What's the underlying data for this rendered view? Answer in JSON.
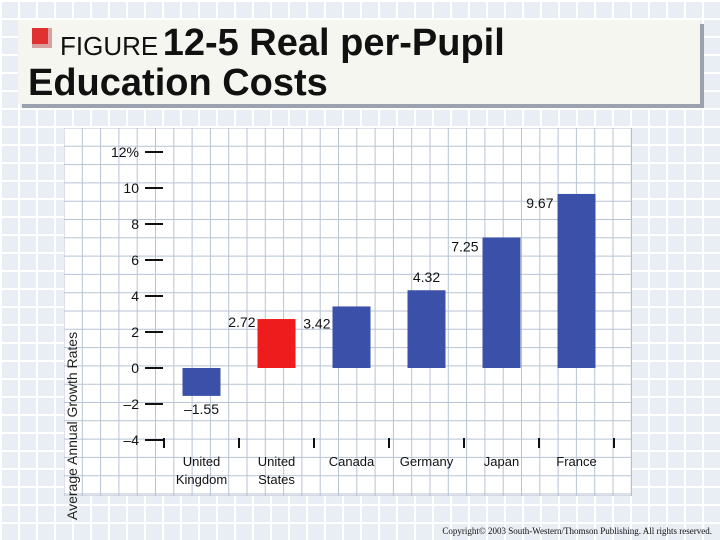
{
  "title": {
    "figure_label": "FIGURE",
    "number_text": "12-5 Real per-Pupil",
    "line2": "Education Costs"
  },
  "copyright": "Copyright© 2003 South-Western/Thomson Publishing. All rights reserved.",
  "chart_data": {
    "type": "bar",
    "title": "",
    "xlabel": "",
    "ylabel": "Average Annual Growth Rates",
    "ylim": [
      -4,
      12
    ],
    "y_ticks": [
      12,
      10,
      8,
      6,
      4,
      2,
      0,
      -2,
      -4
    ],
    "y_tick_labels": [
      "12%",
      "10",
      "8",
      "6",
      "4",
      "2",
      "0",
      "–2",
      "–4"
    ],
    "categories": [
      "United Kingdom",
      "United States",
      "Canada",
      "Germany",
      "Japan",
      "France"
    ],
    "category_lines": [
      [
        "United",
        "Kingdom"
      ],
      [
        "United",
        "States"
      ],
      [
        "Canada"
      ],
      [
        "Germany"
      ],
      [
        "Japan"
      ],
      [
        "France"
      ]
    ],
    "values": [
      -1.55,
      2.72,
      3.42,
      4.32,
      7.25,
      9.67
    ],
    "value_labels": [
      "–1.55",
      "2.72",
      "3.42",
      "4.32",
      "7.25",
      "9.67"
    ],
    "colors": [
      "#3b50a8",
      "#ee1c1c",
      "#3b50a8",
      "#3b50a8",
      "#3b50a8",
      "#3b50a8"
    ],
    "grid": true,
    "legend": "none"
  }
}
